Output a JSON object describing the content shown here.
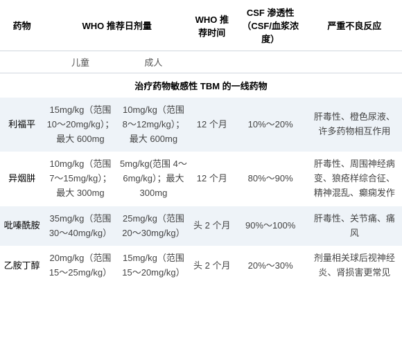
{
  "headers": {
    "drug": "药物",
    "who_dose": "WHO 推荐日剂量",
    "who_duration": "WHO 推荐时间",
    "csf": "CSF 渗透性（CSF/血浆浓度）",
    "adverse": "严重不良反应"
  },
  "subheaders": {
    "child": "儿童",
    "adult": "成人"
  },
  "section_title": "治疗药物敏感性 TBM 的一线药物",
  "rows": [
    {
      "drug": "利福平",
      "child_dose": "15mg/kg（范围 10～20mg/kg）；最大 600mg",
      "adult_dose": "10mg/kg（范围 8～12mg/kg）；最大 600mg",
      "duration": "12 个月",
      "csf": "10%～20%",
      "adverse": "肝毒性、橙色尿液、许多药物相互作用"
    },
    {
      "drug": "异烟肼",
      "child_dose": "10mg/kg（范围 7～15mg/kg）；最大 300mg",
      "adult_dose": "5mg/kg(范围 4～6mg/kg）；最大 300mg",
      "duration": "12 个月",
      "csf": "80%～90%",
      "adverse": "肝毒性、周围神经病变、狼疮样综合征、精神混乱、癫痫发作"
    },
    {
      "drug": "吡嗪酰胺",
      "child_dose": "35mg/kg（范围 30～40mg/kg）",
      "adult_dose": "25mg/kg（范围 20～30mg/kg）",
      "duration": "头 2 个月",
      "csf": "90%～100%",
      "adverse": "肝毒性、关节痛、痛风"
    },
    {
      "drug": "乙胺丁醇",
      "child_dose": "20mg/kg（范围 15～25mg/kg）",
      "adult_dose": "15mg/kg（范围 15～20mg/kg）",
      "duration": "头 2 个月",
      "csf": "20%～30%",
      "adverse": "剂量相关球后视神经炎、肾损害更常见"
    }
  ]
}
